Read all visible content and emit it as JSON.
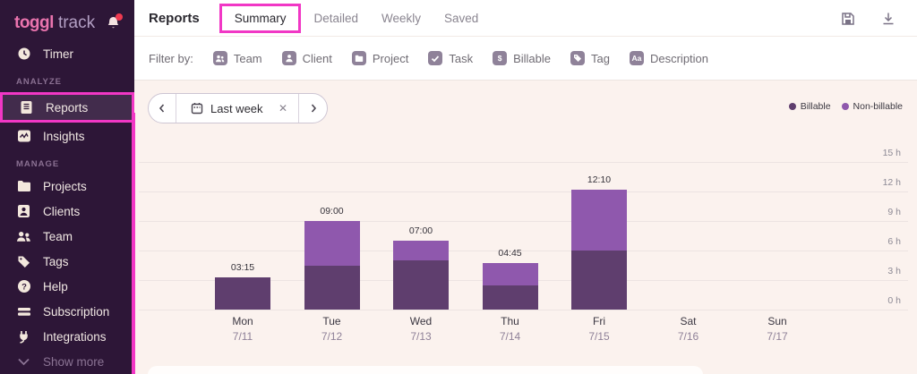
{
  "app": {
    "logo_primary": "toggl",
    "logo_secondary": "track"
  },
  "sidebar": {
    "items": [
      {
        "label": "Timer",
        "icon": "clock"
      },
      {
        "label": "ANALYZE",
        "type": "section"
      },
      {
        "label": "Reports",
        "icon": "reports",
        "active": true,
        "annotated": true
      },
      {
        "label": "Insights",
        "icon": "insights"
      },
      {
        "label": "MANAGE",
        "type": "section"
      },
      {
        "label": "Projects",
        "icon": "folder"
      },
      {
        "label": "Clients",
        "icon": "client"
      },
      {
        "label": "Team",
        "icon": "team"
      },
      {
        "label": "Tags",
        "icon": "tag"
      },
      {
        "label": "Help",
        "icon": "help"
      },
      {
        "label": "Subscription",
        "icon": "subscription"
      },
      {
        "label": "Integrations",
        "icon": "plug"
      },
      {
        "label": "Show more",
        "icon": "chevron-down",
        "muted": true
      }
    ]
  },
  "header": {
    "title": "Reports",
    "tabs": [
      {
        "label": "Summary",
        "active": true,
        "annotated": true
      },
      {
        "label": "Detailed"
      },
      {
        "label": "Weekly"
      },
      {
        "label": "Saved"
      }
    ],
    "tools": [
      {
        "name": "save-icon"
      },
      {
        "name": "download-icon"
      }
    ]
  },
  "filter_bar": {
    "label": "Filter by:",
    "filters": [
      {
        "label": "Team",
        "icon": "team"
      },
      {
        "label": "Client",
        "icon": "person"
      },
      {
        "label": "Project",
        "icon": "folder"
      },
      {
        "label": "Task",
        "icon": "check"
      },
      {
        "label": "Billable",
        "icon": "dollar"
      },
      {
        "label": "Tag",
        "icon": "tag"
      },
      {
        "label": "Description",
        "icon": "Aa"
      }
    ]
  },
  "date_picker": {
    "value": "Last week",
    "clear": "✕"
  },
  "legend": [
    {
      "label": "Billable",
      "color": "#5f3e6e"
    },
    {
      "label": "Non-billable",
      "color": "#8f58ad"
    }
  ],
  "chart_data": {
    "type": "bar",
    "stacked": true,
    "categories": [
      {
        "day": "Mon",
        "date": "7/11"
      },
      {
        "day": "Tue",
        "date": "7/12"
      },
      {
        "day": "Wed",
        "date": "7/13"
      },
      {
        "day": "Thu",
        "date": "7/14"
      },
      {
        "day": "Fri",
        "date": "7/15"
      },
      {
        "day": "Sat",
        "date": "7/16"
      },
      {
        "day": "Sun",
        "date": "7/17"
      }
    ],
    "series": [
      {
        "name": "Billable",
        "color": "#5f3e6e",
        "values": [
          3.25,
          4.5,
          5.0,
          2.5,
          6.0,
          0,
          0
        ]
      },
      {
        "name": "Non-billable",
        "color": "#8f58ad",
        "values": [
          0,
          4.5,
          2.0,
          2.25,
          6.17,
          0,
          0
        ]
      }
    ],
    "total_labels": [
      "03:15",
      "09:00",
      "07:00",
      "04:45",
      "12:10",
      "",
      ""
    ],
    "yticks": [
      "0 h",
      "3 h",
      "6 h",
      "9 h",
      "12 h",
      "15 h"
    ],
    "ylim": [
      0,
      15
    ],
    "unit": "hours",
    "grid": true,
    "legend_position": "top-right"
  },
  "colors": {
    "annotation": "#f137c5",
    "sidebar_bg": "#2d1637",
    "content_bg": "#fbf2ee",
    "brand_pink": "#ea74ae",
    "billable": "#5f3e6e",
    "non_billable": "#8f58ad"
  }
}
